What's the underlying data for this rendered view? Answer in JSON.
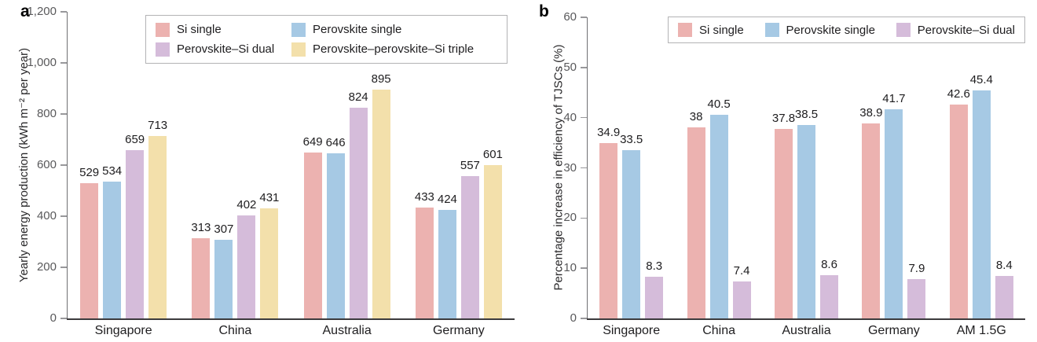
{
  "figure": {
    "background": "#ffffff",
    "axis_color": "#3c3b3d",
    "tick_color": "#98989b"
  },
  "chart_data": [
    {
      "type": "bar",
      "panel_label": "a",
      "title": "",
      "categories": [
        "Singapore",
        "China",
        "Australia",
        "Germany"
      ],
      "series": [
        {
          "name": "Si single",
          "color": "#ecb2b0",
          "values": [
            529,
            313,
            649,
            433
          ]
        },
        {
          "name": "Perovskite single",
          "color": "#a6c9e4",
          "values": [
            534,
            307,
            646,
            424
          ]
        },
        {
          "name": "Perovskite–Si dual",
          "color": "#d5bcda",
          "values": [
            659,
            402,
            824,
            557
          ]
        },
        {
          "name": "Perovskite–perovskite–Si triple",
          "color": "#f3e0ab",
          "values": [
            713,
            431,
            895,
            601
          ]
        }
      ],
      "xlabel": "",
      "ylabel": "Yearly energy production (kWh m⁻² per year)",
      "ylim": [
        0,
        1200
      ],
      "yticks": [
        0,
        200,
        400,
        600,
        800,
        1000,
        1200
      ],
      "ytick_labels": [
        "0",
        "200",
        "400",
        "600",
        "800",
        "1,000",
        "1,200"
      ],
      "grid": false,
      "legend_position": "top-center",
      "legend_columns": 2
    },
    {
      "type": "bar",
      "panel_label": "b",
      "title": "",
      "categories": [
        "Singapore",
        "China",
        "Australia",
        "Germany",
        "AM 1.5G"
      ],
      "series": [
        {
          "name": "Si single",
          "color": "#ecb2b0",
          "values": [
            34.9,
            38,
            37.8,
            38.9,
            42.6
          ]
        },
        {
          "name": "Perovskite single",
          "color": "#a6c9e4",
          "values": [
            33.5,
            40.5,
            38.5,
            41.7,
            45.4
          ]
        },
        {
          "name": "Perovskite–Si dual",
          "color": "#d5bcda",
          "values": [
            8.3,
            7.4,
            8.6,
            7.9,
            8.4
          ]
        }
      ],
      "xlabel": "",
      "ylabel": "Percentage increase in efficiency of TJSCs (%)",
      "ylim": [
        0,
        60
      ],
      "yticks": [
        0,
        10,
        20,
        30,
        40,
        50,
        60
      ],
      "ytick_labels": [
        "0",
        "10",
        "20",
        "30",
        "40",
        "50",
        "60"
      ],
      "grid": false,
      "legend_position": "top-center",
      "legend_columns": 3
    }
  ]
}
